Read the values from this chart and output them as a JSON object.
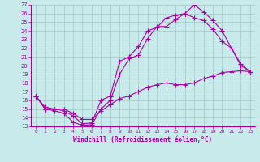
{
  "xlabel": "Windchill (Refroidissement éolien,°C)",
  "bg_color": "#c8eaea",
  "grid_color": "#a8cccc",
  "line_color": "#aa00aa",
  "xlim": [
    -0.5,
    23.5
  ],
  "ylim": [
    13,
    27
  ],
  "xticks": [
    0,
    1,
    2,
    3,
    4,
    5,
    6,
    7,
    8,
    9,
    10,
    11,
    12,
    13,
    14,
    15,
    16,
    17,
    18,
    19,
    20,
    21,
    22,
    23
  ],
  "yticks": [
    13,
    14,
    15,
    16,
    17,
    18,
    19,
    20,
    21,
    22,
    23,
    24,
    25,
    26,
    27
  ],
  "line1_x": [
    0,
    1,
    2,
    3,
    4,
    5,
    6,
    7,
    8,
    9,
    10,
    11,
    12,
    13,
    14,
    15,
    16,
    17,
    18,
    19,
    20,
    21,
    22,
    23
  ],
  "line1_y": [
    16.5,
    15.0,
    14.8,
    14.5,
    13.5,
    13.1,
    13.2,
    15.0,
    16.0,
    19.0,
    20.8,
    21.2,
    23.1,
    24.5,
    24.5,
    25.3,
    26.0,
    27.0,
    26.2,
    25.2,
    24.0,
    22.0,
    20.2,
    19.3
  ],
  "line2_x": [
    0,
    1,
    2,
    3,
    4,
    5,
    6,
    7,
    8,
    9,
    10,
    11,
    12,
    13,
    14,
    15,
    16,
    17,
    18,
    19,
    20,
    21,
    22,
    23
  ],
  "line2_y": [
    16.5,
    15.0,
    15.0,
    14.8,
    14.2,
    13.3,
    13.4,
    16.0,
    16.5,
    20.5,
    21.0,
    22.2,
    24.0,
    24.4,
    25.5,
    25.8,
    26.0,
    25.5,
    25.2,
    24.2,
    22.8,
    22.0,
    20.0,
    19.3
  ],
  "line3_x": [
    0,
    1,
    2,
    3,
    4,
    5,
    6,
    7,
    8,
    9,
    10,
    11,
    12,
    13,
    14,
    15,
    16,
    17,
    18,
    19,
    20,
    21,
    22,
    23
  ],
  "line3_y": [
    16.5,
    15.2,
    15.0,
    15.0,
    14.5,
    13.8,
    13.8,
    14.8,
    15.5,
    16.2,
    16.5,
    17.0,
    17.5,
    17.8,
    18.0,
    17.8,
    17.8,
    18.0,
    18.5,
    18.8,
    19.2,
    19.3,
    19.4,
    19.3
  ]
}
